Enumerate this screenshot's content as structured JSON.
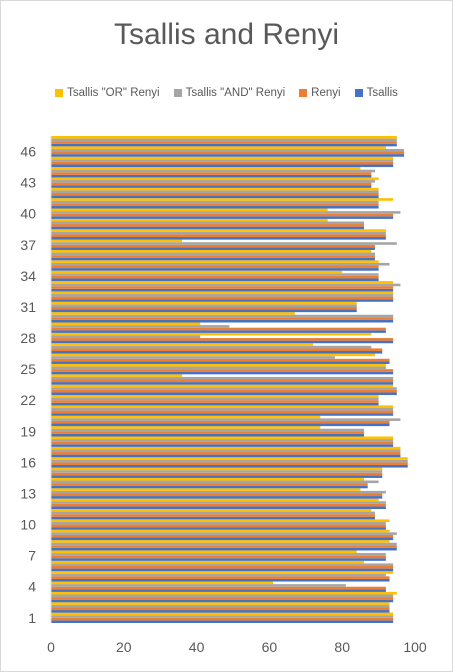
{
  "chart_data": {
    "type": "bar",
    "orientation": "horizontal",
    "title": "Tsallis and Renyi",
    "xlabel": "",
    "ylabel": "",
    "xlim": [
      0,
      100
    ],
    "x_ticks": [
      0,
      20,
      40,
      60,
      80,
      100
    ],
    "categories": [
      "1",
      "2",
      "3",
      "4",
      "5",
      "6",
      "7",
      "8",
      "9",
      "10",
      "11",
      "12",
      "13",
      "14",
      "15",
      "16",
      "17",
      "18",
      "19",
      "20",
      "21",
      "22",
      "23",
      "24",
      "25",
      "26",
      "27",
      "28",
      "29",
      "30",
      "31",
      "32",
      "33",
      "34",
      "35",
      "36",
      "37",
      "38",
      "39",
      "40",
      "41",
      "42",
      "43",
      "44",
      "45",
      "46",
      "47"
    ],
    "category_labels_shown": [
      "1",
      "4",
      "7",
      "10",
      "13",
      "16",
      "19",
      "22",
      "25",
      "28",
      "31",
      "34",
      "37",
      "40",
      "43",
      "46"
    ],
    "legend_position": "top",
    "grid": false,
    "series": [
      {
        "name": "Tsallis",
        "color": "#4472C4",
        "values": [
          94,
          93,
          94,
          92,
          93,
          94,
          92,
          95,
          94,
          92,
          89,
          92,
          91,
          87,
          91,
          98,
          96,
          94,
          86,
          93,
          94,
          90,
          95,
          94,
          94,
          93,
          91,
          94,
          92,
          94,
          84,
          94,
          94,
          90,
          90,
          89,
          89,
          92,
          86,
          94,
          90,
          90,
          88,
          88,
          94,
          97,
          95
        ]
      },
      {
        "name": "Renyi",
        "color": "#ED7D31",
        "values": [
          94,
          93,
          94,
          92,
          93,
          94,
          92,
          95,
          94,
          92,
          89,
          92,
          91,
          87,
          91,
          98,
          96,
          94,
          86,
          93,
          94,
          90,
          95,
          94,
          94,
          93,
          91,
          94,
          92,
          94,
          84,
          94,
          94,
          90,
          90,
          89,
          89,
          92,
          86,
          94,
          90,
          90,
          88,
          88,
          94,
          97,
          95
        ]
      },
      {
        "name": "Tsallis \"AND\" Renyi",
        "color": "#A5A5A5",
        "values": [
          94,
          93,
          94,
          81,
          92,
          94,
          92,
          95,
          95,
          92,
          89,
          92,
          92,
          90,
          91,
          98,
          96,
          94,
          86,
          96,
          94,
          90,
          95,
          94,
          92,
          78,
          88,
          41,
          49,
          94,
          84,
          94,
          96,
          90,
          93,
          89,
          95,
          92,
          86,
          96,
          90,
          90,
          89,
          89,
          94,
          97,
          95
        ]
      },
      {
        "name": "Tsallis \"OR\" Renyi",
        "color": "#FFC000",
        "values": [
          94,
          93,
          95,
          61,
          94,
          86,
          84,
          93,
          93,
          93,
          88,
          90,
          85,
          86,
          91,
          98,
          96,
          94,
          74,
          74,
          94,
          90,
          94,
          36,
          92,
          89,
          72,
          88,
          41,
          67,
          84,
          94,
          94,
          80,
          90,
          88,
          36,
          92,
          76,
          76,
          94,
          90,
          90,
          85,
          94,
          92,
          95
        ]
      }
    ]
  }
}
